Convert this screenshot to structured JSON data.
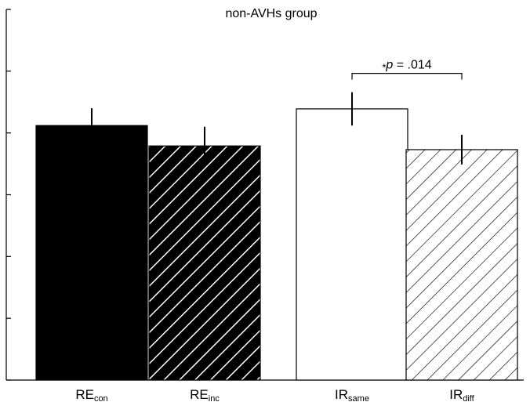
{
  "chart_data": {
    "type": "bar",
    "title": "non-AVHs group",
    "categories": [
      {
        "main": "RE",
        "sub": "con"
      },
      {
        "main": "RE",
        "sub": "inc"
      },
      {
        "main": "IR",
        "sub": "same"
      },
      {
        "main": "IR",
        "sub": "diff"
      }
    ],
    "values": [
      4.12,
      3.79,
      4.39,
      3.73
    ],
    "errors": [
      0.28,
      0.31,
      0.27,
      0.24
    ],
    "ylim": [
      0,
      6
    ],
    "y_tick_count": 7,
    "tick_labels_shown": false,
    "grid": false,
    "bar_styles": [
      {
        "fill": "#000000",
        "pattern": "solid"
      },
      {
        "fill": "#000000",
        "pattern": "hatch-white"
      },
      {
        "fill": "#ffffff",
        "pattern": "solid"
      },
      {
        "fill": "#ffffff",
        "pattern": "hatch-black"
      }
    ],
    "xlabel": "",
    "ylabel": "",
    "annotations": [
      {
        "star": "*",
        "italic": "p",
        "rest": " = .014",
        "between": [
          2,
          3
        ]
      }
    ]
  }
}
